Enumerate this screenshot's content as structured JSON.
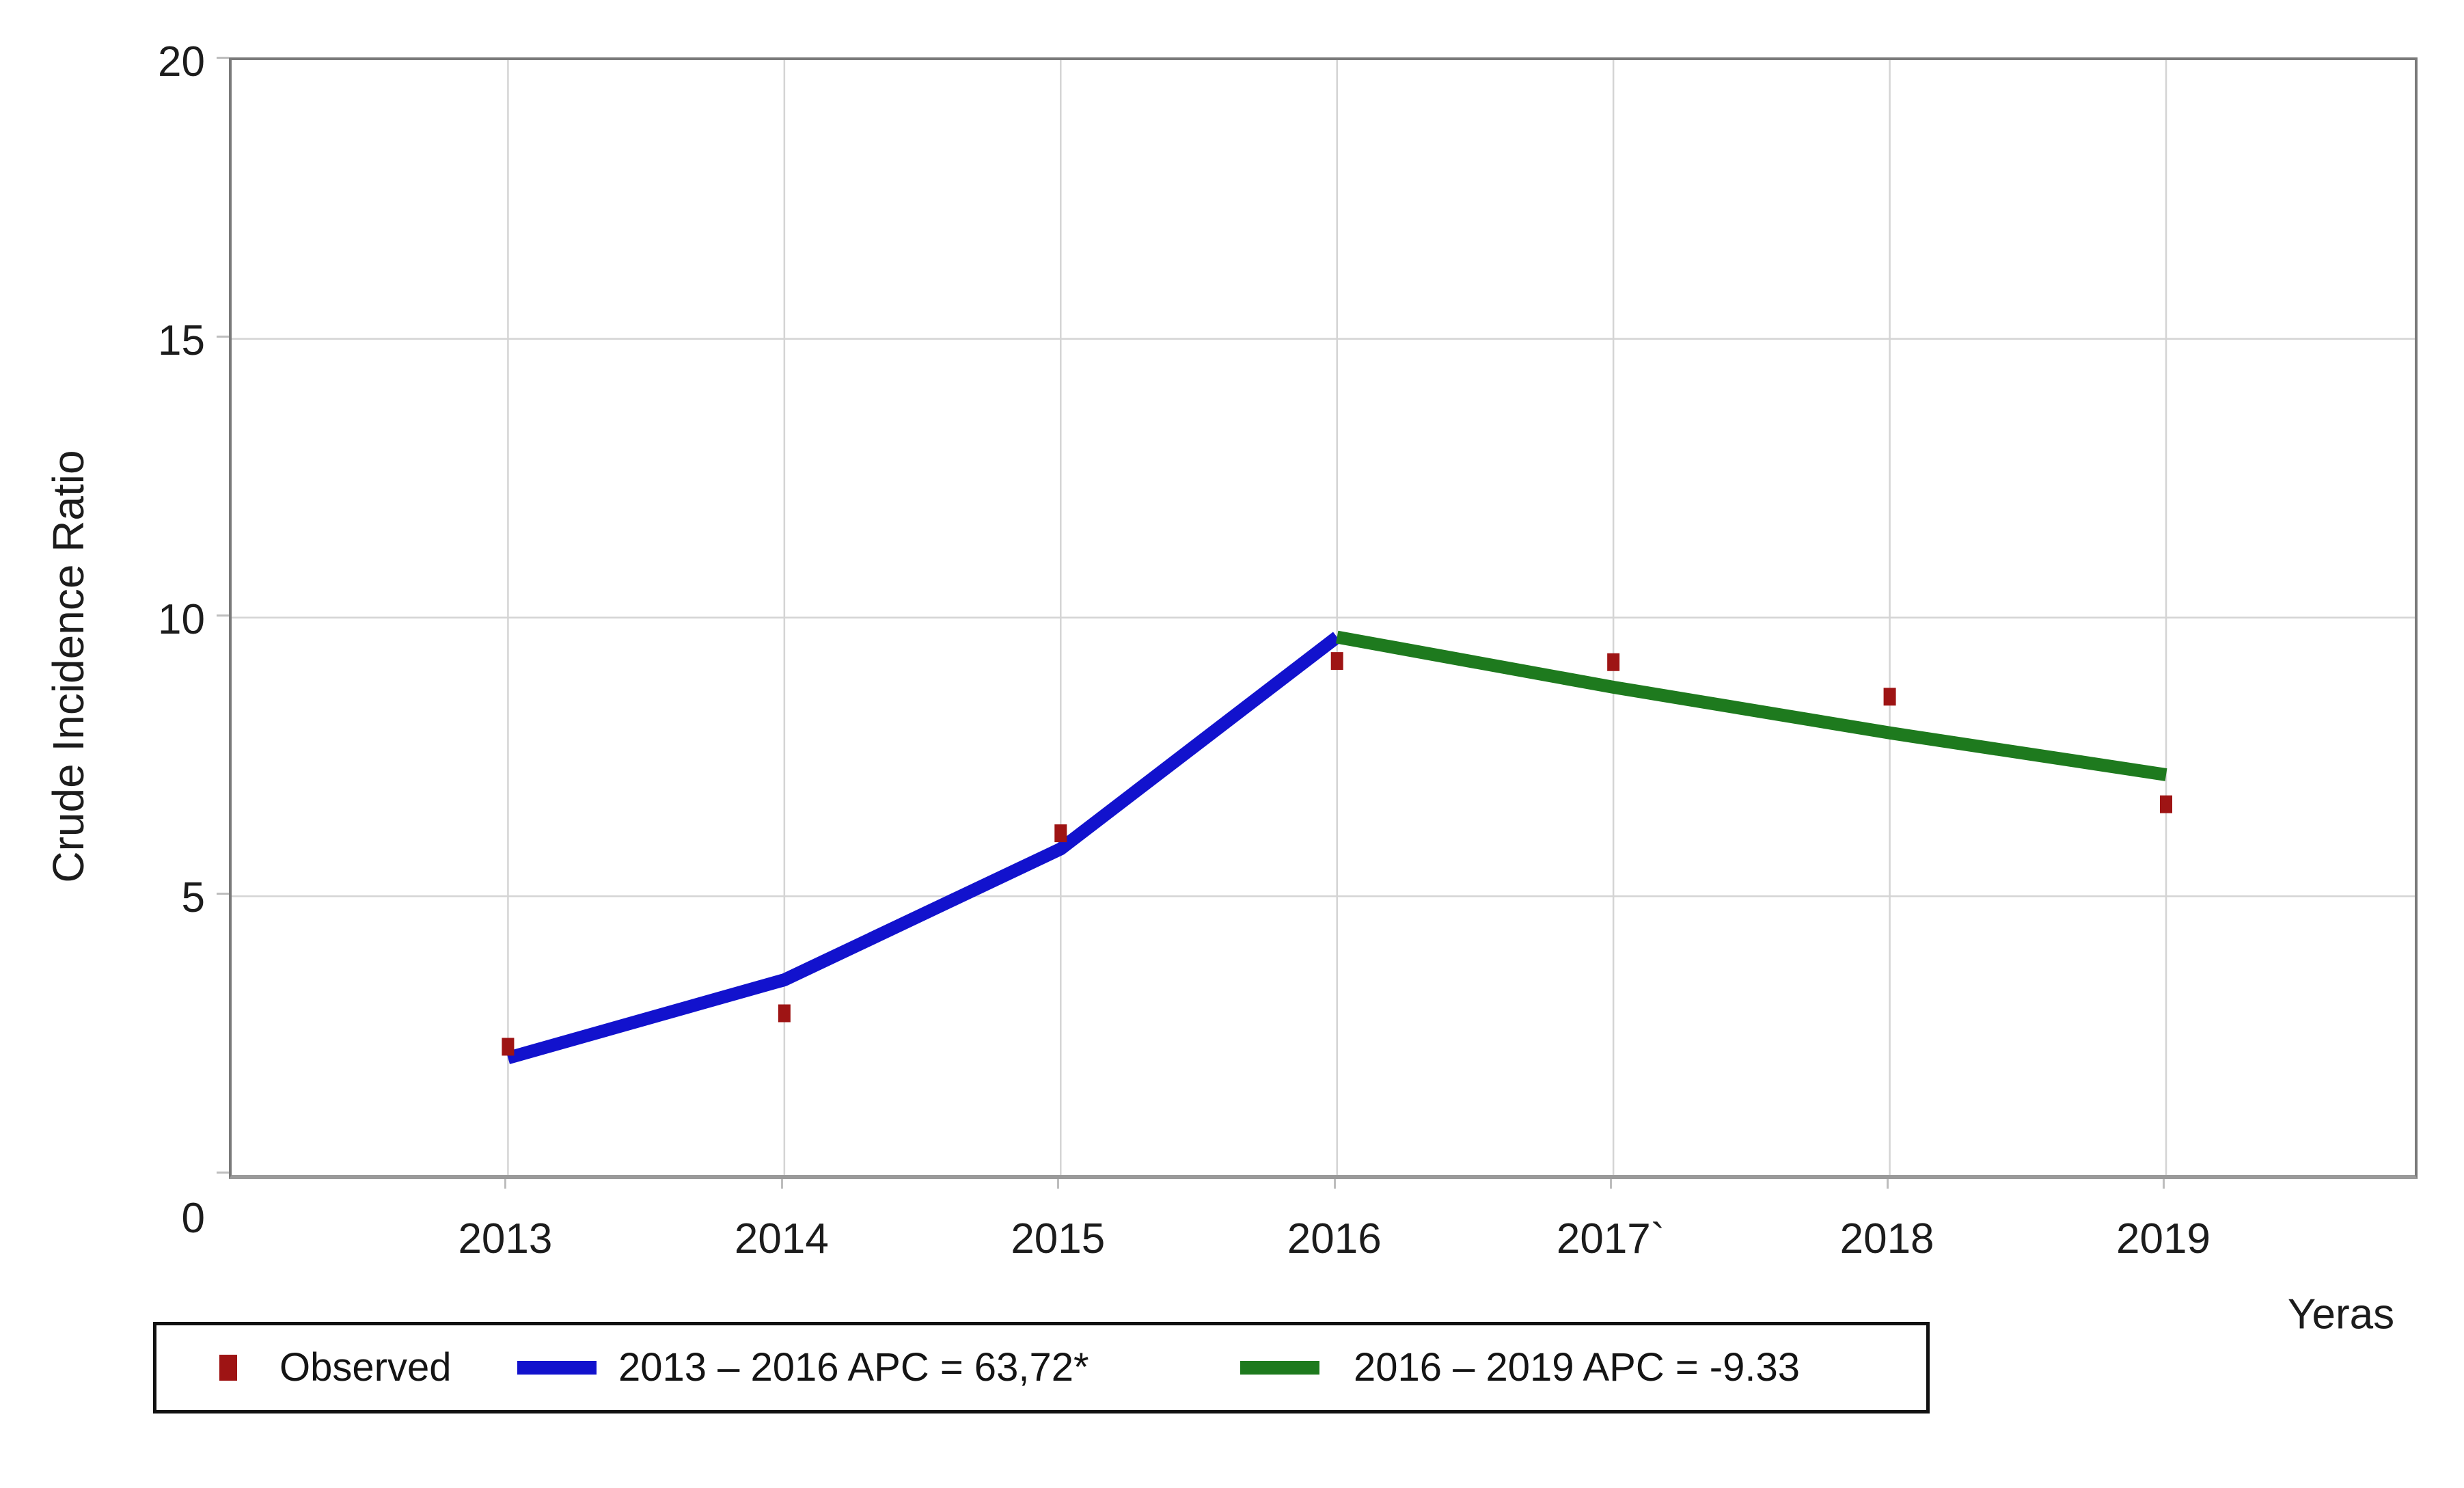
{
  "colors": {
    "observed": "#9e1414",
    "segment1": "#1212cd",
    "segment2": "#1e7a1e",
    "grid": "#d4d4d4",
    "plot_border": "#7a7a7a",
    "axis_bottom": "#9a9a9a",
    "text": "#1c1c1c",
    "legend_border": "#111111"
  },
  "axes": {
    "ylabel": "Crude Incidence Ratio",
    "xlabel": "Yeras",
    "y_tick_labels": [
      "20",
      "15",
      "10",
      "5",
      "0"
    ],
    "x_tick_labels": [
      "2013",
      "2014",
      "2015",
      "2016",
      "2017`",
      "2018",
      "2019"
    ]
  },
  "legend": {
    "observed_label": "Observed",
    "segment1_label": "2013 – 2016 APC = 63,72*",
    "segment2_label": "2016 – 2019 APC = -9.33"
  },
  "chart_data": {
    "type": "line",
    "title": "",
    "xlabel": "Yeras",
    "ylabel": "Crude Incidence Ratio",
    "xlim": [
      2012,
      2019.9
    ],
    "ylim": [
      0,
      20
    ],
    "grid": true,
    "legend_position": "bottom-left",
    "x_ticks": [
      2013,
      2014,
      2015,
      2016,
      2017,
      2018,
      2019
    ],
    "x_tick_labels": [
      "2013",
      "2014",
      "2015",
      "2016",
      "2017`",
      "2018",
      "2019"
    ],
    "y_ticks": [
      0,
      5,
      10,
      15,
      20
    ],
    "series": [
      {
        "name": "Observed",
        "type": "scatter",
        "marker": "square",
        "color": "#9e1414",
        "x": [
          2013,
          2014,
          2015,
          2016,
          2017,
          2018,
          2019
        ],
        "values": [
          2.3,
          2.9,
          6.13,
          9.22,
          9.2,
          8.58,
          6.65
        ]
      },
      {
        "name": "2013 – 2016 APC = 63,72*",
        "type": "line",
        "color": "#1212cd",
        "x": [
          2013,
          2014,
          2015,
          2016
        ],
        "values": [
          2.1,
          3.5,
          5.85,
          9.65
        ]
      },
      {
        "name": "2016 – 2019 APC = -9.33",
        "type": "line",
        "color": "#1e7a1e",
        "x": [
          2016,
          2017,
          2018,
          2019
        ],
        "values": [
          9.65,
          8.75,
          7.93,
          7.18
        ]
      }
    ]
  }
}
